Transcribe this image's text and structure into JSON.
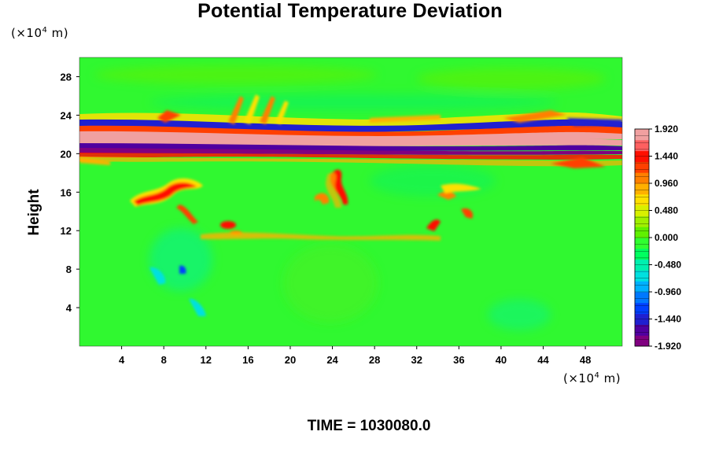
{
  "chart_data": {
    "type": "heatmap",
    "title": "Potential Temperature Deviation",
    "xlabel": "",
    "ylabel": "Height",
    "x_unit": "(×10⁴ m)",
    "y_unit": "(×10⁴ m)",
    "xlim": [
      0,
      51.5
    ],
    "ylim": [
      0,
      30
    ],
    "x_ticks": [
      "4",
      "8",
      "12",
      "16",
      "20",
      "24",
      "28",
      "32",
      "36",
      "40",
      "44",
      "48"
    ],
    "y_ticks": [
      "4",
      "8",
      "12",
      "16",
      "20",
      "24",
      "28"
    ],
    "colorbar": {
      "min": -1.92,
      "max": 1.92,
      "step": 0.12,
      "tick_labels": [
        "1.920",
        "1.440",
        "0.960",
        "0.480",
        "0.000",
        "-0.480",
        "-0.960",
        "-1.440",
        "-1.920"
      ],
      "colors": [
        "#800080",
        "#5000a0",
        "#2020d0",
        "#0040ff",
        "#0078ff",
        "#00b0ff",
        "#00e0e0",
        "#00f0b0",
        "#00ff60",
        "#30ff30",
        "#60f000",
        "#a0f000",
        "#d8f000",
        "#ffe000",
        "#ffb000",
        "#ff8000",
        "#ff4000",
        "#ff1000",
        "#ff6060",
        "#f0a0a0"
      ]
    },
    "background_value": 0.0,
    "features": [
      {
        "name": "upper band",
        "x": [
          0,
          51.5
        ],
        "y": [
          19.5,
          23.5
        ],
        "values": [
          -1.92,
          1.92
        ]
      },
      {
        "name": "eddy",
        "x": 7,
        "y": 16,
        "value": 1.6
      },
      {
        "name": "eddy",
        "x": 10,
        "y": 13.5,
        "value": 1.5
      },
      {
        "name": "eddy",
        "x": 13.5,
        "y": 12.5,
        "value": 1.8
      },
      {
        "name": "eddy",
        "x": 24,
        "y": 16,
        "value": 1.7
      },
      {
        "name": "eddy",
        "x": 33,
        "y": 13,
        "value": 1.6
      },
      {
        "name": "eddy",
        "x": 35,
        "y": 14.5,
        "value": 1.2
      },
      {
        "name": "cold eddy",
        "x": 10,
        "y": 7,
        "value": -0.8
      }
    ]
  },
  "time_label": "TIME = 1030080.0"
}
